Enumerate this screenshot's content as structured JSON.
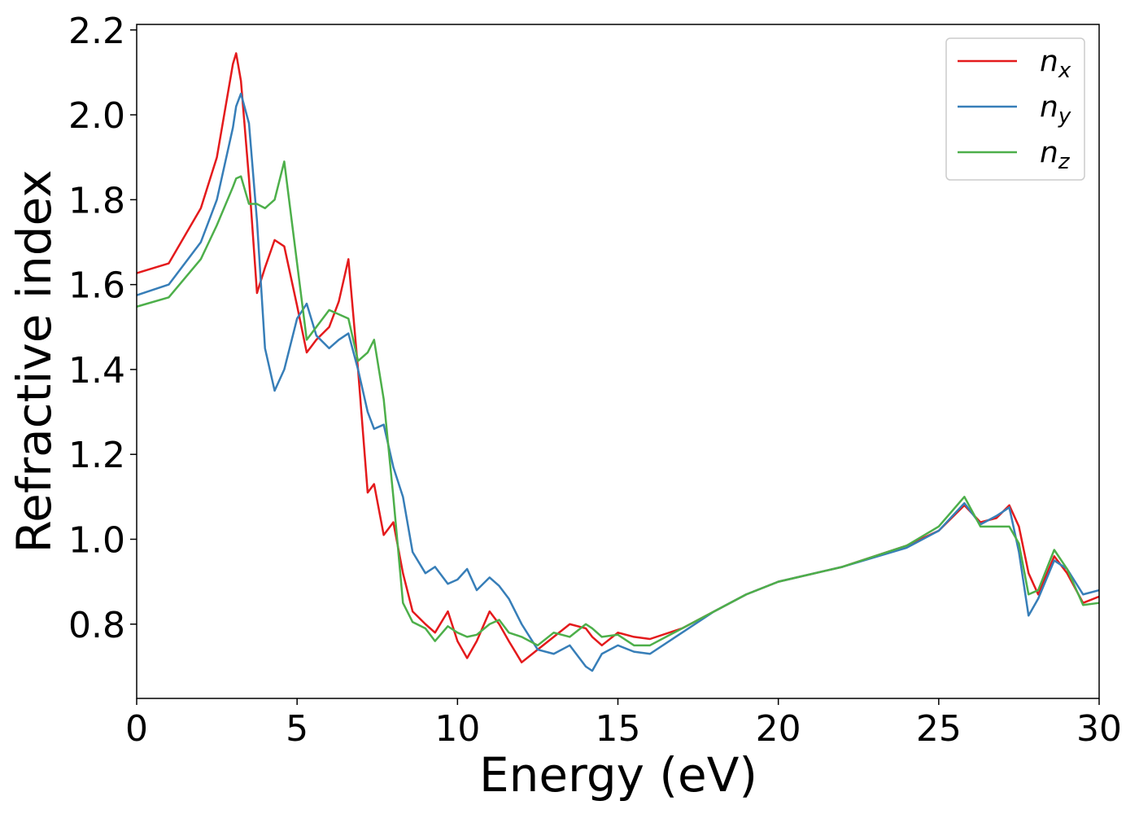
{
  "chart_data": {
    "type": "line",
    "xlabel": "Energy (eV)",
    "ylabel": "Refractive index",
    "x": [
      0,
      1,
      2,
      2.5,
      3,
      3.1,
      3.25,
      3.5,
      3.75,
      4,
      4.3,
      4.6,
      5,
      5.3,
      5.6,
      6,
      6.3,
      6.6,
      6.9,
      7.2,
      7.4,
      7.7,
      8,
      8.3,
      8.6,
      9,
      9.3,
      9.7,
      10,
      10.3,
      10.6,
      11,
      11.3,
      11.6,
      12,
      12.5,
      13,
      13.5,
      14,
      14.2,
      14.5,
      15,
      15.5,
      16,
      17,
      18,
      19,
      20,
      22,
      24,
      25,
      25.8,
      26.3,
      26.8,
      27.2,
      27.5,
      27.8,
      28.1,
      28.6,
      29,
      29.5,
      30
    ],
    "series": [
      {
        "name": "nx",
        "color": "#e41a1c",
        "values": [
          1.627,
          1.65,
          1.78,
          1.9,
          2.12,
          2.145,
          2.08,
          1.85,
          1.58,
          1.64,
          1.705,
          1.69,
          1.55,
          1.44,
          1.47,
          1.5,
          1.56,
          1.66,
          1.4,
          1.11,
          1.13,
          1.01,
          1.04,
          0.92,
          0.83,
          0.8,
          0.78,
          0.83,
          0.76,
          0.72,
          0.76,
          0.83,
          0.8,
          0.76,
          0.71,
          0.74,
          0.77,
          0.8,
          0.79,
          0.77,
          0.75,
          0.78,
          0.77,
          0.765,
          0.79,
          0.83,
          0.87,
          0.9,
          0.935,
          0.985,
          1.02,
          1.08,
          1.04,
          1.05,
          1.08,
          1.03,
          0.92,
          0.87,
          0.96,
          0.92,
          0.85,
          0.865
        ]
      },
      {
        "name": "ny",
        "color": "#377eb8",
        "values": [
          1.575,
          1.6,
          1.7,
          1.8,
          1.97,
          2.02,
          2.05,
          1.98,
          1.75,
          1.45,
          1.35,
          1.4,
          1.52,
          1.555,
          1.48,
          1.45,
          1.47,
          1.485,
          1.4,
          1.3,
          1.26,
          1.27,
          1.17,
          1.1,
          0.97,
          0.92,
          0.935,
          0.895,
          0.905,
          0.93,
          0.88,
          0.91,
          0.89,
          0.86,
          0.8,
          0.74,
          0.73,
          0.75,
          0.7,
          0.69,
          0.73,
          0.75,
          0.735,
          0.73,
          0.78,
          0.83,
          0.87,
          0.9,
          0.935,
          0.98,
          1.02,
          1.085,
          1.035,
          1.055,
          1.075,
          0.97,
          0.82,
          0.86,
          0.95,
          0.93,
          0.87,
          0.88
        ]
      },
      {
        "name": "nz",
        "color": "#4daf4a",
        "values": [
          1.548,
          1.57,
          1.66,
          1.74,
          1.83,
          1.85,
          1.855,
          1.79,
          1.79,
          1.78,
          1.8,
          1.89,
          1.65,
          1.47,
          1.5,
          1.54,
          1.53,
          1.52,
          1.42,
          1.44,
          1.47,
          1.33,
          1.1,
          0.85,
          0.805,
          0.79,
          0.76,
          0.795,
          0.78,
          0.77,
          0.775,
          0.8,
          0.81,
          0.78,
          0.77,
          0.75,
          0.78,
          0.77,
          0.8,
          0.79,
          0.77,
          0.775,
          0.75,
          0.75,
          0.79,
          0.83,
          0.87,
          0.9,
          0.935,
          0.985,
          1.03,
          1.1,
          1.03,
          1.03,
          1.03,
          0.99,
          0.87,
          0.88,
          0.975,
          0.93,
          0.845,
          0.85
        ]
      }
    ],
    "xlim": [
      0,
      30
    ],
    "xticks": [
      0,
      5,
      10,
      15,
      20,
      25,
      30
    ],
    "ylim": [
      0.625,
      2.213
    ],
    "yticks": [
      0.8,
      {
        "value": 1.0,
        "label": "1.0"
      },
      1.2,
      1.4,
      1.6,
      1.8,
      {
        "value": 2.0,
        "label": "2.0"
      },
      2.2
    ],
    "grid": false,
    "legend": "upper right"
  }
}
